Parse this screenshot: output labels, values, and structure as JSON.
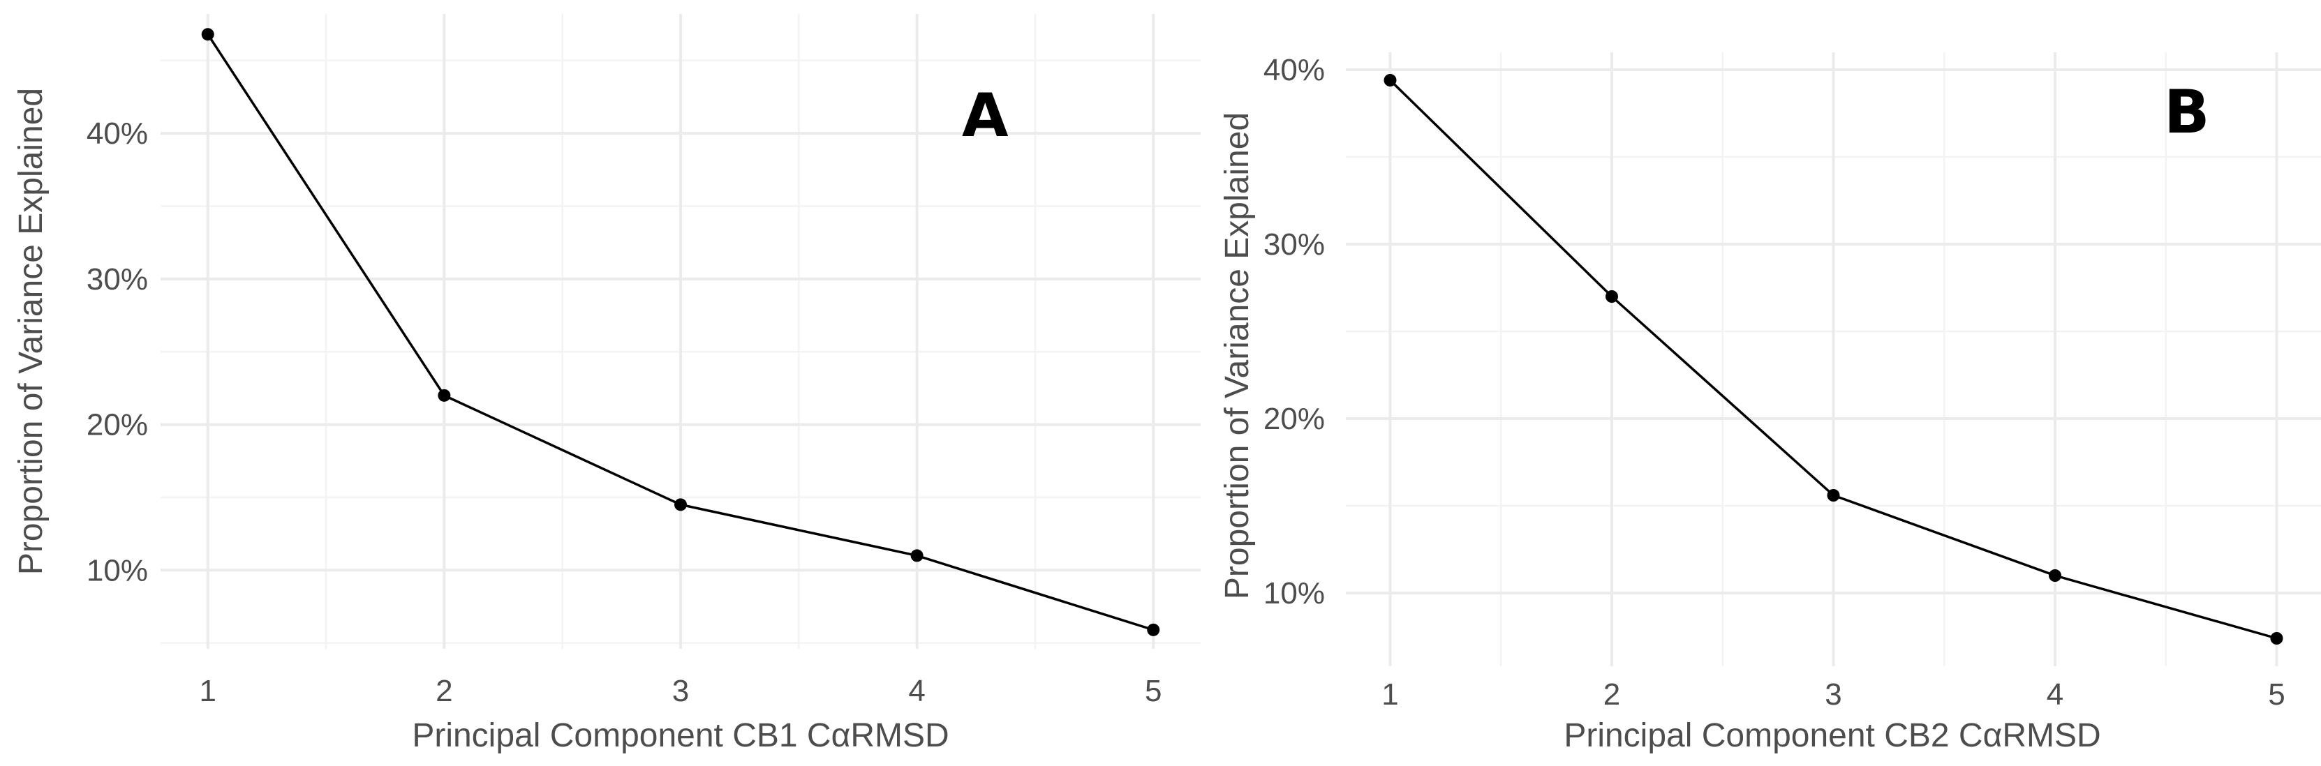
{
  "chart_data": [
    {
      "type": "line",
      "panel_label": "A",
      "xlabel": "Principal Component CB1 CαRMSD",
      "ylabel": "Proportion of Variance Explained",
      "x": [
        1,
        2,
        3,
        4,
        5
      ],
      "values": [
        46.8,
        22.0,
        14.5,
        11.0,
        5.9
      ],
      "xlim": [
        0.8,
        5.2
      ],
      "ylim": [
        4.6,
        48.2
      ],
      "x_ticks": [
        "1",
        "2",
        "3",
        "4",
        "5"
      ],
      "y_ticks": [
        {
          "value": 10,
          "label": "10%"
        },
        {
          "value": 20,
          "label": "20%"
        },
        {
          "value": 30,
          "label": "30%"
        },
        {
          "value": 40,
          "label": "40%"
        }
      ],
      "grid": true,
      "legend": "none"
    },
    {
      "type": "line",
      "panel_label": "B",
      "xlabel": "Principal Component CB2 CαRMSD",
      "ylabel": "Proportion of Variance Explained",
      "x": [
        1,
        2,
        3,
        4,
        5
      ],
      "values": [
        39.4,
        27.0,
        15.6,
        11.0,
        7.4
      ],
      "xlim": [
        0.8,
        5.2
      ],
      "ylim": [
        5.8,
        41.0
      ],
      "x_ticks": [
        "1",
        "2",
        "3",
        "4",
        "5"
      ],
      "y_ticks": [
        {
          "value": 10,
          "label": "10%"
        },
        {
          "value": 20,
          "label": "20%"
        },
        {
          "value": 30,
          "label": "30%"
        },
        {
          "value": 40,
          "label": "40%"
        }
      ],
      "grid": true,
      "legend": "none"
    }
  ]
}
